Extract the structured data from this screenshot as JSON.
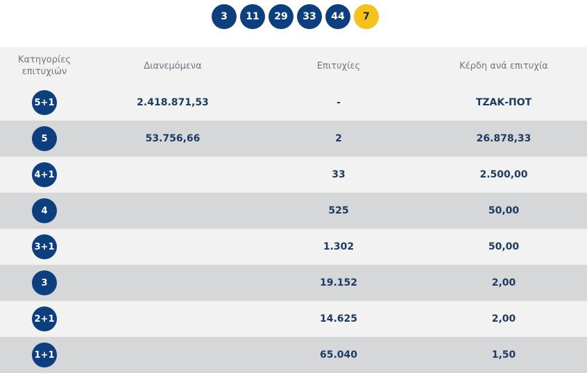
{
  "draw_numbers": [
    "3",
    "11",
    "29",
    "33",
    "44"
  ],
  "joker_number": "7",
  "colors": {
    "ball": "#0d3f7f",
    "joker": "#f5c21b",
    "row_light": "#f2f2f2",
    "row_dark": "#d6d7d9",
    "value_text": "#1d3a63"
  },
  "table": {
    "headers": {
      "category": "Κατηγορίες επιτυχιών",
      "distributed": "Διανεμόμενα",
      "winners": "Επιτυχίες",
      "prize_per_winner": "Κέρδη ανά επιτυχία"
    },
    "rows": [
      {
        "category": "5+1",
        "distributed": "2.418.871,53",
        "winners": "-",
        "prize": "ΤΖΑΚ-ΠΟΤ"
      },
      {
        "category": "5",
        "distributed": "53.756,66",
        "winners": "2",
        "prize": "26.878,33"
      },
      {
        "category": "4+1",
        "distributed": "",
        "winners": "33",
        "prize": "2.500,00"
      },
      {
        "category": "4",
        "distributed": "",
        "winners": "525",
        "prize": "50,00"
      },
      {
        "category": "3+1",
        "distributed": "",
        "winners": "1.302",
        "prize": "50,00"
      },
      {
        "category": "3",
        "distributed": "",
        "winners": "19.152",
        "prize": "2,00"
      },
      {
        "category": "2+1",
        "distributed": "",
        "winners": "14.625",
        "prize": "2,00"
      },
      {
        "category": "1+1",
        "distributed": "",
        "winners": "65.040",
        "prize": "1,50"
      }
    ]
  }
}
